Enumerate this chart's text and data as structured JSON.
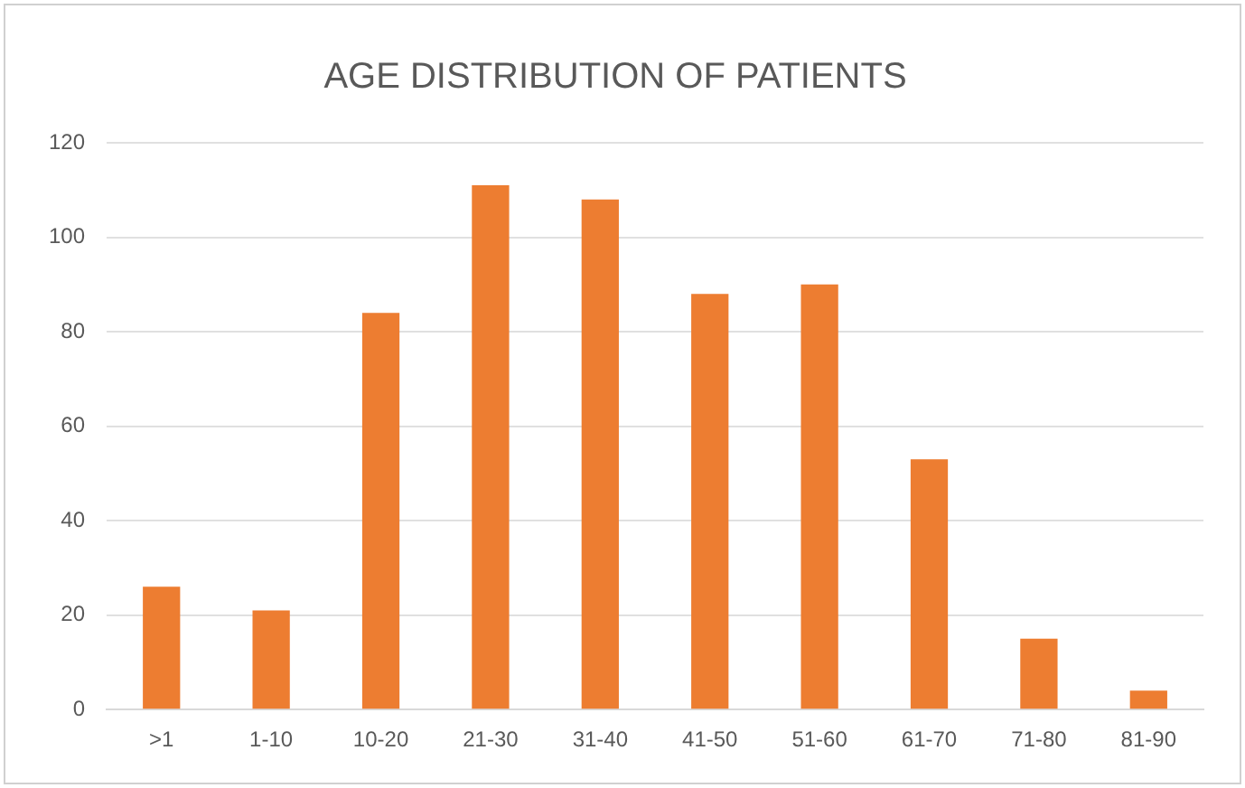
{
  "chart_data": {
    "type": "bar",
    "title": "AGE DISTRIBUTION OF PATIENTS",
    "categories": [
      ">1",
      "1-10",
      "10-20",
      "21-30",
      "31-40",
      "41-50",
      "51-60",
      "61-70",
      "71-80",
      "81-90"
    ],
    "values": [
      26,
      21,
      84,
      111,
      108,
      88,
      90,
      53,
      15,
      4
    ],
    "color": "#ed7d31",
    "ylim": [
      0,
      120
    ],
    "yticks": [
      0,
      20,
      40,
      60,
      80,
      100,
      120
    ],
    "grid": "y",
    "legend": false
  }
}
